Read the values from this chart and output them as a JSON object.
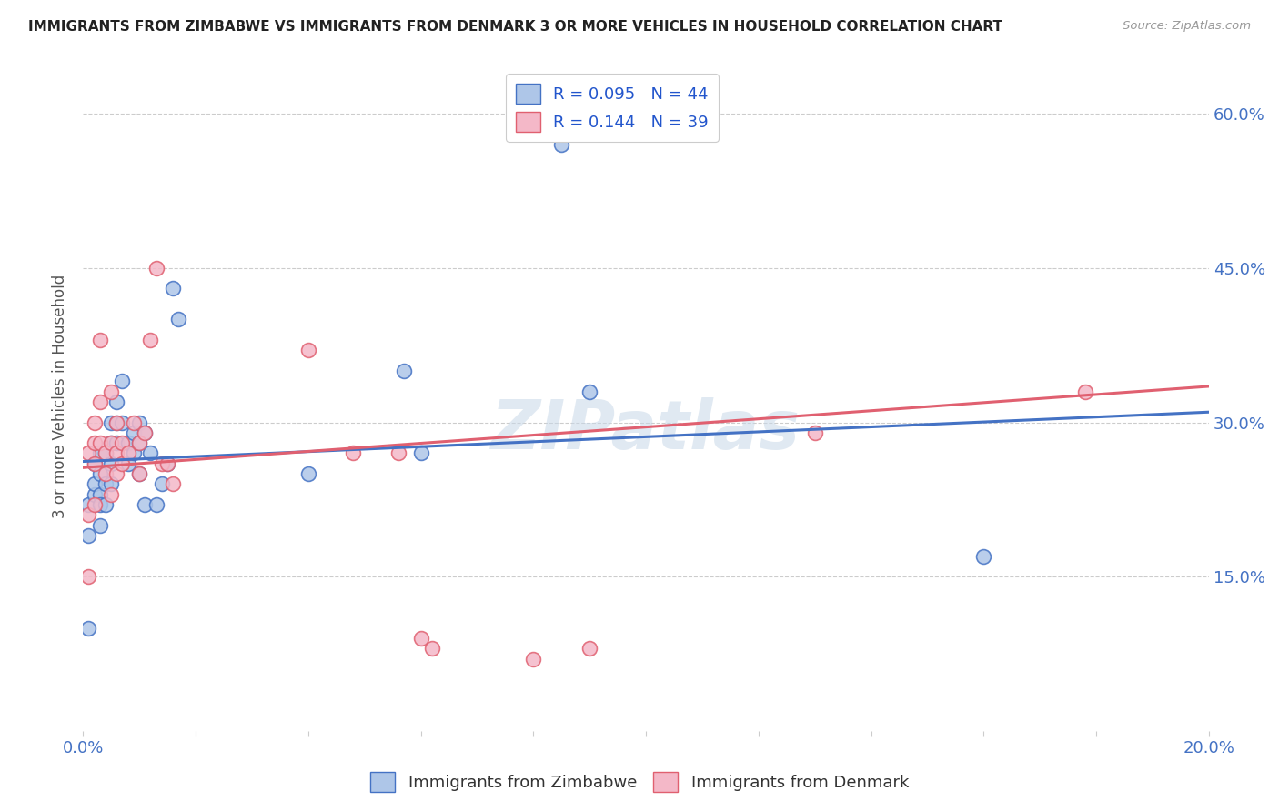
{
  "title": "IMMIGRANTS FROM ZIMBABWE VS IMMIGRANTS FROM DENMARK 3 OR MORE VEHICLES IN HOUSEHOLD CORRELATION CHART",
  "source": "Source: ZipAtlas.com",
  "ylabel": "3 or more Vehicles in Household",
  "y_ticks": [
    0.15,
    0.3,
    0.45,
    0.6
  ],
  "y_tick_labels": [
    "15.0%",
    "30.0%",
    "45.0%",
    "60.0%"
  ],
  "x_ticks": [
    0.0,
    0.02,
    0.04,
    0.06,
    0.08,
    0.1,
    0.12,
    0.14,
    0.16,
    0.18,
    0.2
  ],
  "xlim": [
    0.0,
    0.2
  ],
  "ylim": [
    0.0,
    0.65
  ],
  "watermark": "ZIPatlas",
  "zimbabwe_color": "#aec6e8",
  "zimbabwe_line_color": "#4472c4",
  "denmark_color": "#f4b8c8",
  "denmark_line_color": "#e06070",
  "background_color": "#ffffff",
  "grid_color": "#cccccc",
  "zimbabwe_x": [
    0.001,
    0.001,
    0.001,
    0.002,
    0.002,
    0.002,
    0.003,
    0.003,
    0.003,
    0.003,
    0.003,
    0.004,
    0.004,
    0.004,
    0.005,
    0.005,
    0.005,
    0.005,
    0.006,
    0.006,
    0.006,
    0.007,
    0.007,
    0.008,
    0.008,
    0.009,
    0.009,
    0.01,
    0.01,
    0.01,
    0.011,
    0.011,
    0.012,
    0.013,
    0.014,
    0.015,
    0.016,
    0.017,
    0.04,
    0.057,
    0.06,
    0.085,
    0.09,
    0.16
  ],
  "zimbabwe_y": [
    0.1,
    0.19,
    0.22,
    0.23,
    0.26,
    0.24,
    0.25,
    0.23,
    0.27,
    0.22,
    0.2,
    0.27,
    0.24,
    0.22,
    0.3,
    0.28,
    0.26,
    0.24,
    0.32,
    0.3,
    0.28,
    0.34,
    0.3,
    0.28,
    0.26,
    0.29,
    0.27,
    0.3,
    0.28,
    0.25,
    0.29,
    0.22,
    0.27,
    0.22,
    0.24,
    0.26,
    0.43,
    0.4,
    0.25,
    0.35,
    0.27,
    0.57,
    0.33,
    0.17
  ],
  "denmark_x": [
    0.001,
    0.001,
    0.001,
    0.002,
    0.002,
    0.002,
    0.002,
    0.003,
    0.003,
    0.003,
    0.004,
    0.004,
    0.005,
    0.005,
    0.005,
    0.006,
    0.006,
    0.006,
    0.007,
    0.007,
    0.008,
    0.009,
    0.01,
    0.01,
    0.011,
    0.012,
    0.013,
    0.014,
    0.015,
    0.016,
    0.04,
    0.048,
    0.056,
    0.06,
    0.062,
    0.08,
    0.09,
    0.13,
    0.178
  ],
  "denmark_y": [
    0.15,
    0.21,
    0.27,
    0.28,
    0.3,
    0.26,
    0.22,
    0.38,
    0.32,
    0.28,
    0.27,
    0.25,
    0.33,
    0.28,
    0.23,
    0.3,
    0.27,
    0.25,
    0.28,
    0.26,
    0.27,
    0.3,
    0.28,
    0.25,
    0.29,
    0.38,
    0.45,
    0.26,
    0.26,
    0.24,
    0.37,
    0.27,
    0.27,
    0.09,
    0.08,
    0.07,
    0.08,
    0.29,
    0.33
  ],
  "zim_trend_x0": 0.0,
  "zim_trend_y0": 0.262,
  "zim_trend_x1": 0.2,
  "zim_trend_y1": 0.31,
  "den_trend_x0": 0.0,
  "den_trend_y0": 0.256,
  "den_trend_x1": 0.2,
  "den_trend_y1": 0.335
}
